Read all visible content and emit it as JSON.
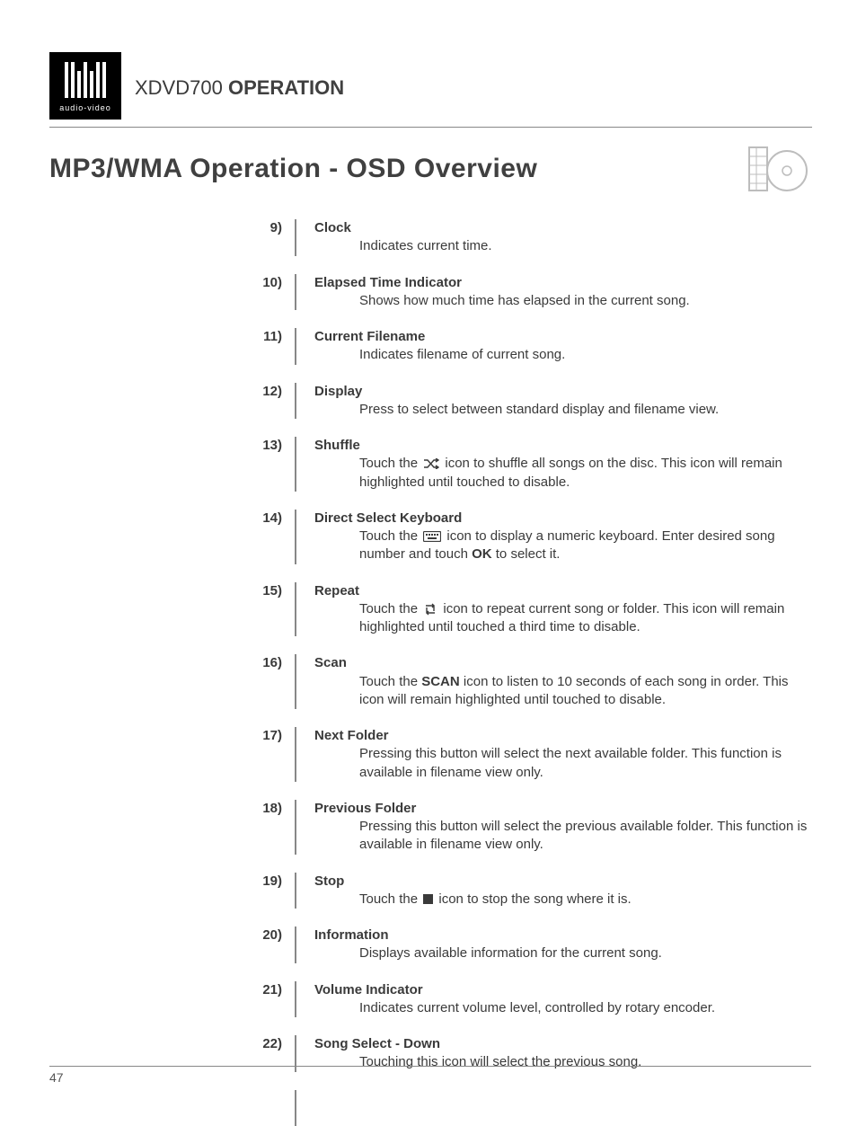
{
  "logo": {
    "subtext": "audio-video"
  },
  "header": {
    "model": "XDVD700",
    "section": "OPERATION"
  },
  "subtitle": "MP3/WMA Operation - OSD Overview",
  "page_number": "47",
  "items": [
    {
      "num": "9)",
      "title": "Clock",
      "desc": "Indicates current time."
    },
    {
      "num": "10)",
      "title": "Elapsed Time Indicator",
      "desc": "Shows how much time has elapsed in the current song."
    },
    {
      "num": "11)",
      "title": "Current Filename",
      "desc": "Indicates filename of current song."
    },
    {
      "num": "12)",
      "title": "Display",
      "desc": "Press to select between standard display and filename view."
    },
    {
      "num": "13)",
      "title": "Shuffle",
      "desc_pre": "Touch the ",
      "desc_post": " icon to shuffle all songs on the disc. This icon will remain highlighted until touched to disable.",
      "icon": "shuffle"
    },
    {
      "num": "14)",
      "title": "Direct Select Keyboard",
      "desc_pre": "Touch the ",
      "desc_mid": " icon to display a numeric keyboard. Enter desired song number and touch ",
      "bold_word": "OK",
      "desc_post": " to select it.",
      "icon": "keyboard"
    },
    {
      "num": "15)",
      "title": "Repeat",
      "desc_pre": "Touch the ",
      "desc_post": " icon to repeat current song or folder. This icon will remain highlighted until touched a third time to disable.",
      "icon": "repeat"
    },
    {
      "num": "16)",
      "title": "Scan",
      "desc_pre": "Touch the ",
      "bold_word": "SCAN",
      "desc_post": " icon to listen to 10 seconds of each song in order. This icon will remain highlighted until touched to disable."
    },
    {
      "num": "17)",
      "title": "Next Folder",
      "desc": "Pressing this button will select the next available folder. This function is available in filename view only."
    },
    {
      "num": "18)",
      "title": "Previous Folder",
      "desc": "Pressing this button will select the previous available folder. This function is available in filename view only."
    },
    {
      "num": "19)",
      "title": "Stop",
      "desc_pre": "Touch the ",
      "desc_post": " icon to stop the song where it is.",
      "icon": "stop"
    },
    {
      "num": "20)",
      "title": "Information",
      "desc": "Displays available information for the current song."
    },
    {
      "num": "21)",
      "title": "Volume Indicator",
      "desc": "Indicates current volume level, controlled by rotary encoder."
    },
    {
      "num": "22)",
      "title": "Song Select - Down",
      "desc": "Touching this icon will select the previous song."
    }
  ]
}
